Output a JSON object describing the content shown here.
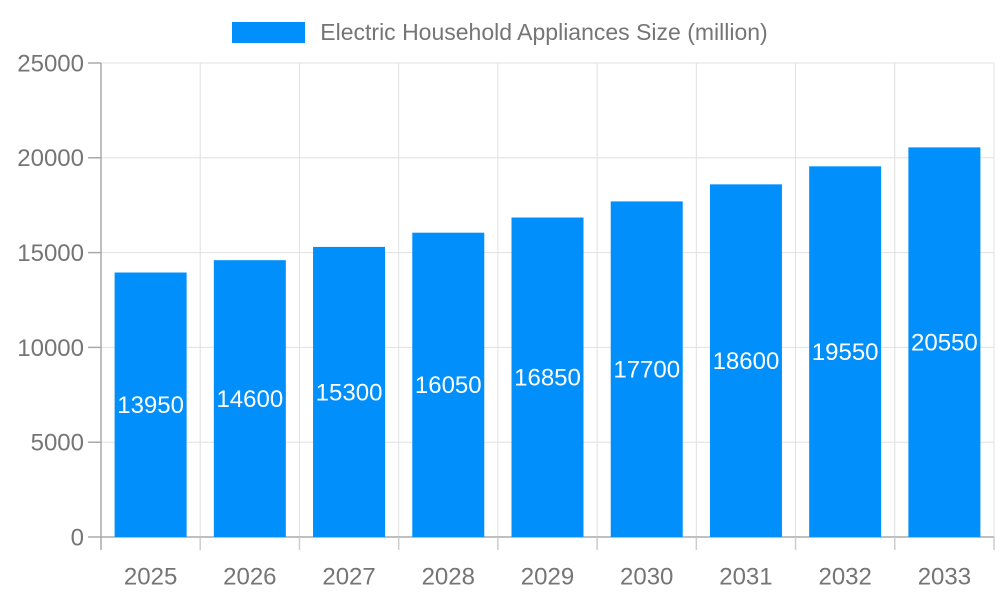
{
  "legend": {
    "label": "Electric Household Appliances Size (million)"
  },
  "chart_data": {
    "type": "bar",
    "title": "Electric Household Appliances Size (million)",
    "categories": [
      "2025",
      "2026",
      "2027",
      "2028",
      "2029",
      "2030",
      "2031",
      "2032",
      "2033"
    ],
    "values": [
      13950,
      14600,
      15300,
      16050,
      16850,
      17700,
      18600,
      19550,
      20550
    ],
    "xlabel": "",
    "ylabel": "",
    "ylim": [
      0,
      25000
    ],
    "yticks": [
      0,
      5000,
      10000,
      15000,
      20000,
      25000
    ],
    "grid": true,
    "legend_position": "top",
    "colors": {
      "bar": "#008FFB",
      "bar_label_text": "#ffffff",
      "axis_text": "#757575",
      "axis_line": "#aaaaaa",
      "gridline": "#e0e0e0",
      "x_tick": "#cccccc",
      "background": "#ffffff"
    }
  }
}
